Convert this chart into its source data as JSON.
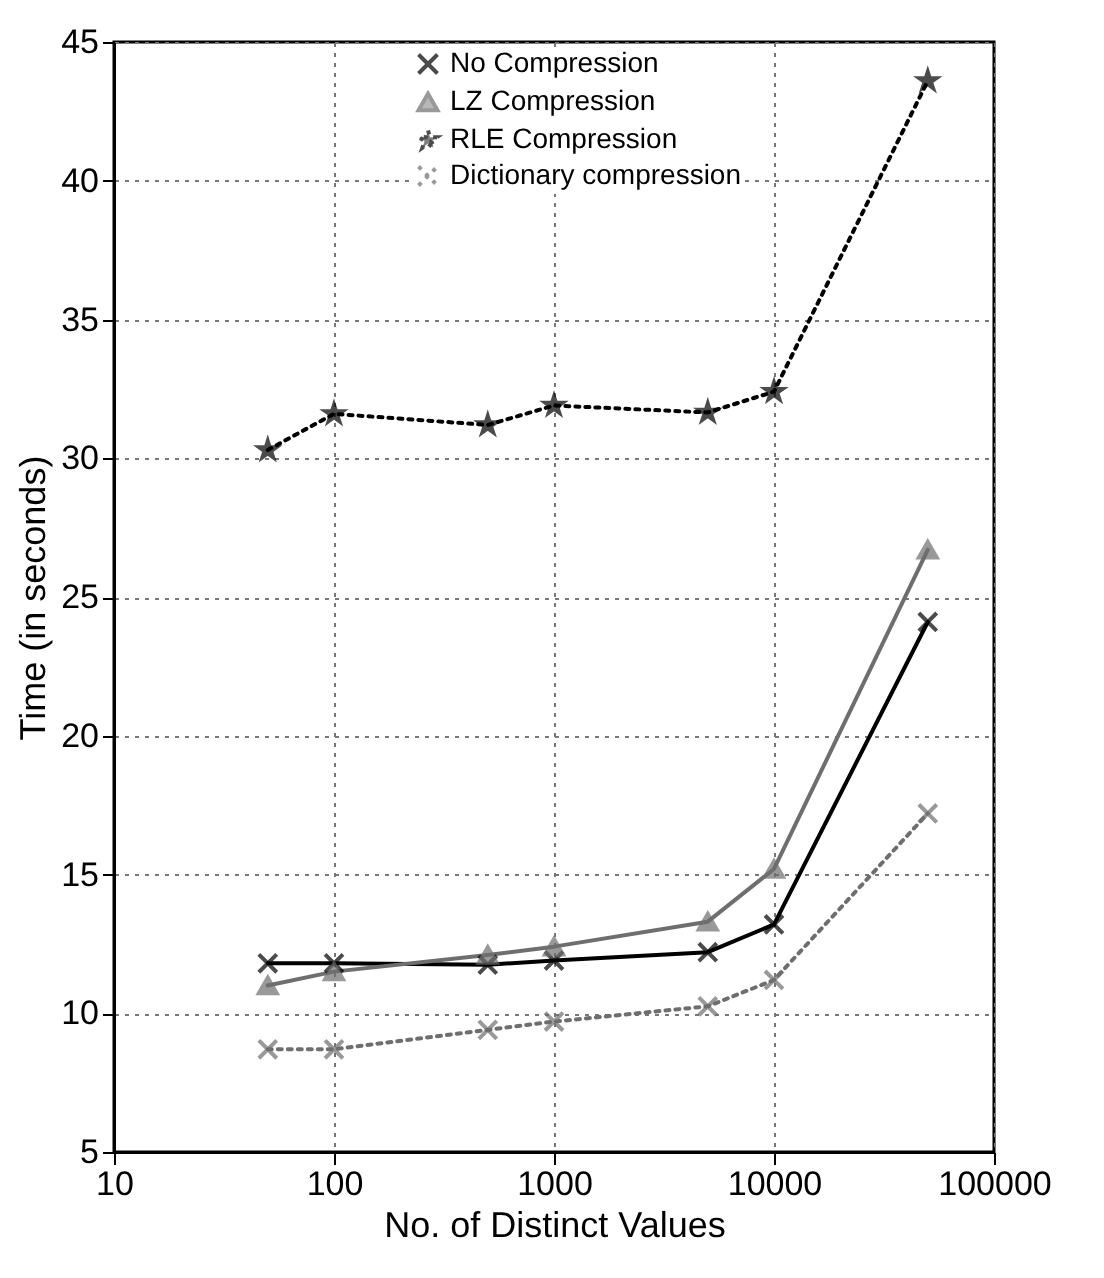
{
  "chart_data": {
    "type": "line",
    "xlabel": "No. of Distinct Values",
    "ylabel": "Time (in seconds)",
    "x": [
      50,
      100,
      500,
      1000,
      5000,
      10000,
      50000
    ],
    "series": [
      {
        "name": "No Compression",
        "color": "#000000",
        "marker": "cross",
        "line_style": "solid",
        "values": [
          11.8,
          11.8,
          11.75,
          11.9,
          12.2,
          13.2,
          24.1
        ]
      },
      {
        "name": "LZ Compression",
        "color": "#6e6e6e",
        "marker": "triangle",
        "line_style": "solid",
        "values": [
          11.0,
          11.5,
          12.1,
          12.4,
          13.3,
          15.2,
          26.7
        ]
      },
      {
        "name": "RLE Compression",
        "color": "#000000",
        "marker": "star",
        "line_style": "dotted",
        "values": [
          30.3,
          31.6,
          31.2,
          31.9,
          31.65,
          32.4,
          43.6
        ]
      },
      {
        "name": "Dictionary compression",
        "color": "#6e6e6e",
        "marker": "cross",
        "line_style": "dotted",
        "values": [
          8.7,
          8.7,
          9.4,
          9.7,
          10.25,
          11.2,
          17.2
        ]
      }
    ],
    "xlim": [
      10,
      100000
    ],
    "xticks": [
      10,
      100,
      1000,
      10000,
      100000
    ],
    "ylim": [
      5,
      45
    ],
    "yticks": [
      5,
      10,
      15,
      20,
      25,
      30,
      35,
      40,
      45
    ],
    "log": "x",
    "grid": true,
    "legend": "top right"
  }
}
